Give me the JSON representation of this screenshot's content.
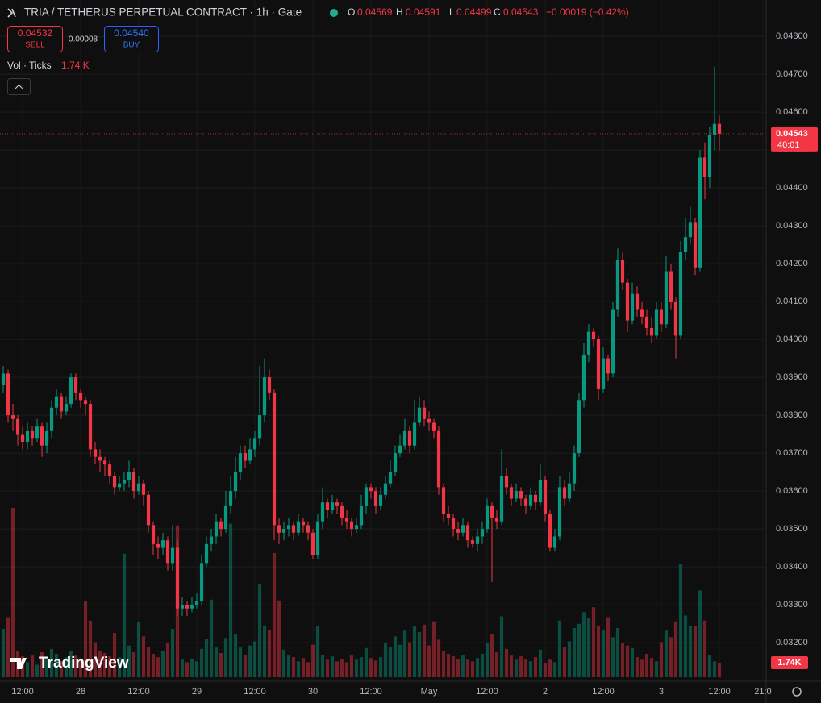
{
  "header": {
    "title": "TRIA / TETHERUS PERPETUAL CONTRACT · 1h · Gate",
    "o_label": "O",
    "o_value": "0.04569",
    "h_label": "H",
    "h_value": "0.04591",
    "l_label": "L",
    "l_value": "0.04499",
    "c_label": "C",
    "c_value": "0.04543",
    "change": "−0.00019 (−0.42%)",
    "sell_price": "0.04532",
    "sell": "SELL",
    "spread": "0.00008",
    "buy_price": "0.04540",
    "buy": "BUY",
    "vol_title": "Vol · Ticks",
    "vol_value": "1.74 K",
    "watermark": "TradingView"
  },
  "chart_data": {
    "type": "candlestick",
    "up_color": "#089981",
    "down_color": "#f23645",
    "grid": true,
    "price_label": "0.04543",
    "countdown": "40:01",
    "volume_label": "1.74K",
    "ylim": [
      0.03098,
      0.04896
    ],
    "yticks": [
      {
        "value": 0.032,
        "label": "0.03200"
      },
      {
        "value": 0.033,
        "label": "0.03300"
      },
      {
        "value": 0.034,
        "label": "0.03400"
      },
      {
        "value": 0.035,
        "label": "0.03500"
      },
      {
        "value": 0.036,
        "label": "0.03600"
      },
      {
        "value": 0.037,
        "label": "0.03700"
      },
      {
        "value": 0.038,
        "label": "0.03800"
      },
      {
        "value": 0.039,
        "label": "0.03900"
      },
      {
        "value": 0.04,
        "label": "0.04000"
      },
      {
        "value": 0.041,
        "label": "0.04100"
      },
      {
        "value": 0.042,
        "label": "0.04200"
      },
      {
        "value": 0.043,
        "label": "0.04300"
      },
      {
        "value": 0.044,
        "label": "0.04400"
      },
      {
        "value": 0.045,
        "label": "0.04500"
      },
      {
        "value": 0.046,
        "label": "0.04600"
      },
      {
        "value": 0.047,
        "label": "0.04700"
      },
      {
        "value": 0.048,
        "label": "0.04800"
      }
    ],
    "xlim": [
      -0.67,
      157.67
    ],
    "xticks": [
      {
        "value": 4,
        "label": "12:00"
      },
      {
        "value": 16,
        "label": "28"
      },
      {
        "value": 28,
        "label": "12:00"
      },
      {
        "value": 40,
        "label": "29"
      },
      {
        "value": 52,
        "label": "12:00"
      },
      {
        "value": 64,
        "label": "30"
      },
      {
        "value": 76,
        "label": "12:00"
      },
      {
        "value": 88,
        "label": "May"
      },
      {
        "value": 100,
        "label": "12:00"
      },
      {
        "value": 112,
        "label": "2"
      },
      {
        "value": 124,
        "label": "12:00"
      },
      {
        "value": 136,
        "label": "3"
      },
      {
        "value": 148,
        "label": "12:00"
      },
      {
        "value": 157,
        "label": "21:0"
      }
    ],
    "open": [
      0.0388,
      0.0391,
      0.038,
      0.0379,
      0.0375,
      0.0373,
      0.0376,
      0.0374,
      0.0377,
      0.0372,
      0.0376,
      0.0382,
      0.0385,
      0.0381,
      0.0383,
      0.039,
      0.0386,
      0.0384,
      0.0383,
      0.0371,
      0.0369,
      0.0368,
      0.0367,
      0.0364,
      0.0361,
      0.0362,
      0.0363,
      0.0365,
      0.036,
      0.0362,
      0.0359,
      0.0351,
      0.0346,
      0.0345,
      0.0347,
      0.0341,
      0.0345,
      0.0329,
      0.033,
      0.0329,
      0.033,
      0.0331,
      0.0341,
      0.0346,
      0.0348,
      0.0352,
      0.035,
      0.0356,
      0.036,
      0.0365,
      0.037,
      0.0368,
      0.0371,
      0.0374,
      0.038,
      0.039,
      0.0386,
      0.0351,
      0.0349,
      0.035,
      0.0351,
      0.0349,
      0.0352,
      0.0351,
      0.0349,
      0.0343,
      0.0352,
      0.0357,
      0.0355,
      0.0357,
      0.0356,
      0.0353,
      0.0352,
      0.035,
      0.0351,
      0.0356,
      0.0361,
      0.036,
      0.0356,
      0.0359,
      0.0362,
      0.0365,
      0.037,
      0.0372,
      0.0376,
      0.0372,
      0.0378,
      0.0382,
      0.0379,
      0.0378,
      0.0376,
      0.0361,
      0.0354,
      0.0353,
      0.035,
      0.0349,
      0.0351,
      0.0347,
      0.0346,
      0.0348,
      0.035,
      0.0356,
      0.0353,
      0.0352,
      0.0364,
      0.0361,
      0.0358,
      0.036,
      0.0358,
      0.0356,
      0.0359,
      0.0357,
      0.0363,
      0.0354,
      0.0345,
      0.0348,
      0.0361,
      0.0358,
      0.0362,
      0.037,
      0.0384,
      0.0396,
      0.0402,
      0.04,
      0.0387,
      0.0395,
      0.0391,
      0.0408,
      0.0421,
      0.0415,
      0.0405,
      0.0412,
      0.0408,
      0.0406,
      0.0403,
      0.0401,
      0.0408,
      0.0404,
      0.0418,
      0.041,
      0.0401,
      0.0423,
      0.0427,
      0.0431,
      0.0419,
      0.0448,
      0.0443,
      0.0454,
      0.04569
    ],
    "high": [
      0.0393,
      0.0392,
      0.0383,
      0.038,
      0.0377,
      0.0378,
      0.0377,
      0.0379,
      0.0378,
      0.0378,
      0.0384,
      0.0387,
      0.0386,
      0.0385,
      0.0391,
      0.0391,
      0.0387,
      0.0385,
      0.0384,
      0.0373,
      0.0371,
      0.0369,
      0.0368,
      0.0365,
      0.0364,
      0.0365,
      0.0368,
      0.0366,
      0.0364,
      0.0363,
      0.036,
      0.0352,
      0.0348,
      0.0349,
      0.0348,
      0.0351,
      0.0347,
      0.0332,
      0.0331,
      0.0332,
      0.0333,
      0.0343,
      0.0348,
      0.035,
      0.0354,
      0.0353,
      0.036,
      0.0364,
      0.0369,
      0.0372,
      0.0372,
      0.0374,
      0.0376,
      0.0393,
      0.0395,
      0.0392,
      0.0387,
      0.0353,
      0.0352,
      0.0353,
      0.0352,
      0.0354,
      0.0353,
      0.0352,
      0.035,
      0.0354,
      0.0361,
      0.0358,
      0.0359,
      0.0358,
      0.0357,
      0.0355,
      0.0353,
      0.0353,
      0.0359,
      0.0362,
      0.0362,
      0.0361,
      0.0361,
      0.0364,
      0.0368,
      0.0372,
      0.0375,
      0.0379,
      0.0377,
      0.0384,
      0.0385,
      0.0384,
      0.0381,
      0.0379,
      0.0377,
      0.0362,
      0.0356,
      0.0354,
      0.0352,
      0.0353,
      0.0352,
      0.0348,
      0.035,
      0.0352,
      0.0358,
      0.0357,
      0.0355,
      0.0371,
      0.0366,
      0.0362,
      0.0362,
      0.0361,
      0.0359,
      0.0361,
      0.036,
      0.0367,
      0.0364,
      0.0355,
      0.035,
      0.0364,
      0.0363,
      0.0365,
      0.0372,
      0.0386,
      0.0399,
      0.0404,
      0.0403,
      0.0401,
      0.0398,
      0.0396,
      0.041,
      0.0424,
      0.0423,
      0.0416,
      0.0415,
      0.0414,
      0.041,
      0.0408,
      0.0406,
      0.041,
      0.041,
      0.0422,
      0.042,
      0.0411,
      0.0426,
      0.0432,
      0.0435,
      0.0432,
      0.045,
      0.0452,
      0.0456,
      0.0472,
      0.04591
    ],
    "low": [
      0.0386,
      0.0378,
      0.0376,
      0.0372,
      0.0371,
      0.0371,
      0.0372,
      0.0373,
      0.0369,
      0.037,
      0.0374,
      0.038,
      0.0379,
      0.038,
      0.0382,
      0.0384,
      0.0382,
      0.038,
      0.0369,
      0.0367,
      0.0365,
      0.0364,
      0.0362,
      0.0359,
      0.036,
      0.036,
      0.0361,
      0.0358,
      0.0359,
      0.0356,
      0.0349,
      0.0343,
      0.0342,
      0.0343,
      0.0339,
      0.0339,
      0.0327,
      0.0327,
      0.0327,
      0.0328,
      0.0329,
      0.033,
      0.034,
      0.0344,
      0.0346,
      0.0348,
      0.0349,
      0.0354,
      0.0358,
      0.0363,
      0.0366,
      0.0367,
      0.0369,
      0.0372,
      0.0378,
      0.0384,
      0.0347,
      0.0346,
      0.0347,
      0.0348,
      0.0347,
      0.0348,
      0.0349,
      0.0347,
      0.0342,
      0.0342,
      0.035,
      0.0353,
      0.0354,
      0.0354,
      0.0351,
      0.035,
      0.0348,
      0.0349,
      0.035,
      0.0354,
      0.0358,
      0.0354,
      0.0355,
      0.0358,
      0.0361,
      0.0364,
      0.0369,
      0.0371,
      0.037,
      0.0371,
      0.0377,
      0.0377,
      0.0376,
      0.0374,
      0.0359,
      0.0352,
      0.0351,
      0.0348,
      0.0347,
      0.0348,
      0.0345,
      0.0345,
      0.0344,
      0.0346,
      0.0349,
      0.0336,
      0.035,
      0.0351,
      0.0359,
      0.0356,
      0.0357,
      0.0356,
      0.0354,
      0.0355,
      0.0355,
      0.0356,
      0.0352,
      0.0344,
      0.0344,
      0.0347,
      0.0356,
      0.0357,
      0.036,
      0.0369,
      0.0382,
      0.0394,
      0.0398,
      0.0384,
      0.0386,
      0.0389,
      0.039,
      0.0406,
      0.0413,
      0.0402,
      0.0404,
      0.0406,
      0.0404,
      0.0401,
      0.0399,
      0.04,
      0.0402,
      0.0403,
      0.0408,
      0.0395,
      0.04,
      0.0421,
      0.0425,
      0.0417,
      0.0418,
      0.0437,
      0.044,
      0.045,
      0.04499
    ],
    "close": [
      0.0391,
      0.038,
      0.0379,
      0.0375,
      0.0373,
      0.0376,
      0.0374,
      0.0377,
      0.0372,
      0.0376,
      0.0382,
      0.0385,
      0.0381,
      0.0383,
      0.039,
      0.0386,
      0.0384,
      0.0383,
      0.0371,
      0.0369,
      0.0368,
      0.0367,
      0.0364,
      0.0361,
      0.0362,
      0.0363,
      0.0365,
      0.036,
      0.0362,
      0.0359,
      0.0351,
      0.0346,
      0.0345,
      0.0347,
      0.0341,
      0.0345,
      0.0329,
      0.033,
      0.0329,
      0.033,
      0.0331,
      0.0341,
      0.0346,
      0.0348,
      0.0352,
      0.035,
      0.0356,
      0.036,
      0.0365,
      0.037,
      0.0368,
      0.0371,
      0.0374,
      0.038,
      0.039,
      0.0386,
      0.0351,
      0.0349,
      0.035,
      0.0351,
      0.0349,
      0.0352,
      0.0351,
      0.0349,
      0.0343,
      0.0352,
      0.0357,
      0.0355,
      0.0357,
      0.0356,
      0.0353,
      0.0352,
      0.035,
      0.0351,
      0.0356,
      0.0361,
      0.036,
      0.0356,
      0.0359,
      0.0362,
      0.0365,
      0.037,
      0.0372,
      0.0376,
      0.0372,
      0.0378,
      0.0382,
      0.0379,
      0.0378,
      0.0376,
      0.0361,
      0.0354,
      0.0353,
      0.035,
      0.0349,
      0.0351,
      0.0347,
      0.0346,
      0.0348,
      0.035,
      0.0356,
      0.0353,
      0.0352,
      0.0364,
      0.0361,
      0.0358,
      0.036,
      0.0358,
      0.0356,
      0.0359,
      0.0357,
      0.0363,
      0.0354,
      0.0345,
      0.0348,
      0.0361,
      0.0358,
      0.0362,
      0.037,
      0.0384,
      0.0396,
      0.0402,
      0.04,
      0.0387,
      0.0395,
      0.0391,
      0.0408,
      0.0421,
      0.0415,
      0.0405,
      0.0412,
      0.0408,
      0.0406,
      0.0403,
      0.0401,
      0.0408,
      0.0404,
      0.0418,
      0.041,
      0.0401,
      0.0423,
      0.0427,
      0.0431,
      0.0419,
      0.0448,
      0.0443,
      0.0454,
      0.04569,
      0.04543
    ],
    "volume": [
      5800,
      7200,
      20300,
      3200,
      2500,
      1800,
      2600,
      1500,
      3000,
      2200,
      3400,
      2800,
      1900,
      2400,
      3100,
      2600,
      2000,
      9100,
      6800,
      4200,
      3100,
      2900,
      2500,
      5300,
      2400,
      14800,
      3800,
      3000,
      6600,
      4900,
      3600,
      2800,
      2400,
      3100,
      4100,
      5800,
      18200,
      2100,
      1800,
      2200,
      1900,
      3400,
      4600,
      9300,
      3600,
      2900,
      4700,
      18400,
      5100,
      3600,
      2700,
      3800,
      4300,
      11100,
      6200,
      5700,
      14900,
      9200,
      3300,
      2600,
      2400,
      1900,
      2300,
      1800,
      3900,
      6100,
      2700,
      2100,
      2500,
      1900,
      2200,
      1800,
      2600,
      2100,
      2400,
      3500,
      2300,
      2000,
      2400,
      4100,
      3600,
      4900,
      3900,
      5600,
      4200,
      6100,
      5400,
      6300,
      3800,
      6700,
      4500,
      3100,
      2800,
      2500,
      2200,
      2600,
      2100,
      1900,
      2300,
      2800,
      4100,
      5200,
      3000,
      7300,
      3400,
      2600,
      2100,
      2500,
      2200,
      1900,
      2400,
      3300,
      1700,
      2100,
      1800,
      6800,
      3600,
      4300,
      5900,
      6400,
      7800,
      7100,
      8400,
      6200,
      5600,
      7200,
      4800,
      5900,
      4100,
      3800,
      3500,
      2400,
      2100,
      2800,
      2300,
      1900,
      4200,
      5600,
      4800,
      6700,
      13600,
      7400,
      6200,
      6100,
      10400,
      6800,
      2600,
      1900,
      1740
    ]
  }
}
